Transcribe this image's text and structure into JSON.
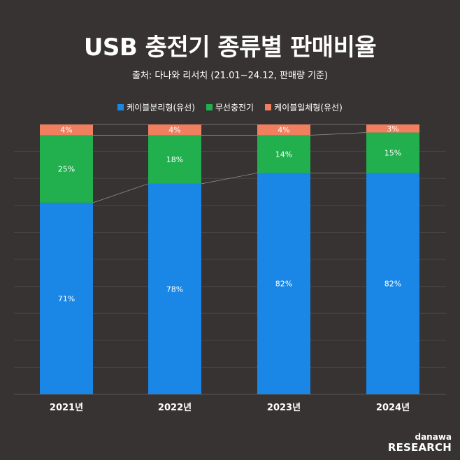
{
  "header": {
    "title": "USB 충전기 종류별 판매비율",
    "subtitle": "출처: 다나와 리서치 (21.01~24.12, 판매량 기준)"
  },
  "brand": {
    "small": "danawa",
    "big": "RESEARCH"
  },
  "colors": {
    "background": "#373333",
    "grid": "#4a4646",
    "connector": "#8c8888"
  },
  "chart_data": {
    "type": "bar",
    "stacked": true,
    "percent": true,
    "categories": [
      "2021년",
      "2022년",
      "2023년",
      "2024년"
    ],
    "series": [
      {
        "name": "케이블분리형(유선)",
        "color": "#1a87e6",
        "values": [
          71,
          78,
          82,
          82
        ]
      },
      {
        "name": "무선충전기",
        "color": "#22b04e",
        "values": [
          25,
          18,
          14,
          15
        ]
      },
      {
        "name": "케이블일체형(유선)",
        "color": "#ef7f5f",
        "values": [
          4,
          4,
          4,
          3
        ]
      }
    ],
    "ylim": [
      0,
      100
    ],
    "grid": true,
    "legend": "top-center"
  }
}
